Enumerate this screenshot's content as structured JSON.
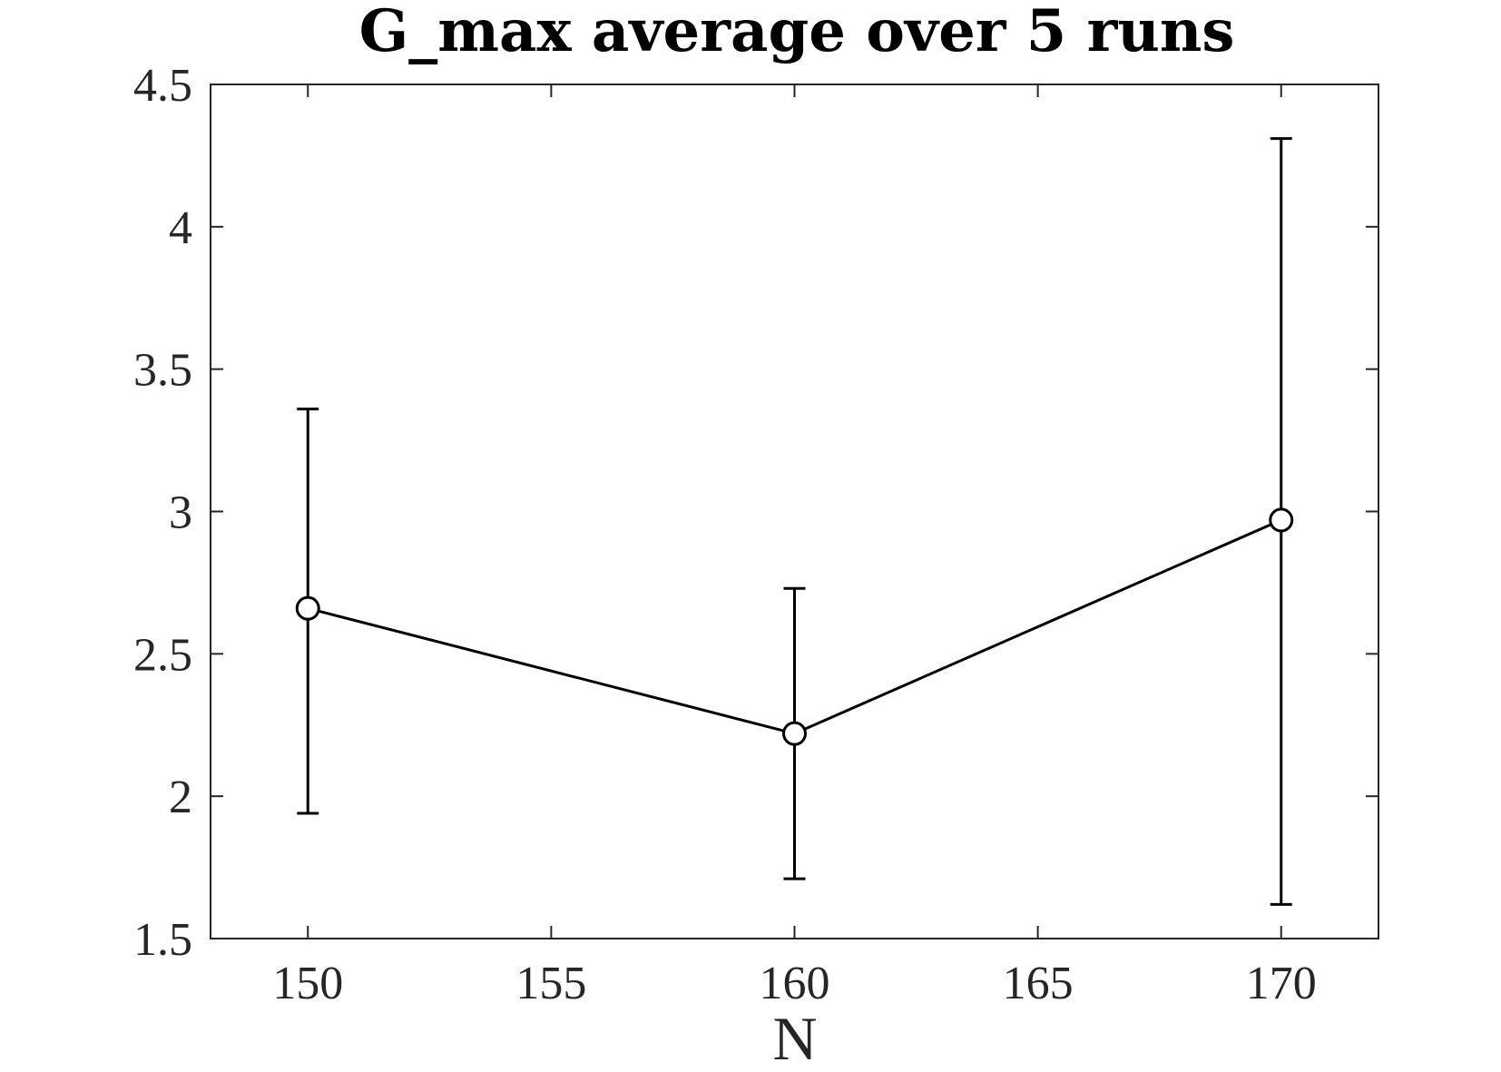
{
  "chart_data": {
    "type": "line",
    "title": "G_max average over 5 runs",
    "xlabel": "N",
    "ylabel": "",
    "xlim": [
      148,
      172
    ],
    "ylim": [
      1.5,
      4.5
    ],
    "xticks": [
      150,
      155,
      160,
      165,
      170
    ],
    "xtick_labels": [
      "150",
      "155",
      "160",
      "165",
      "170"
    ],
    "yticks": [
      1.5,
      2,
      2.5,
      3,
      3.5,
      4,
      4.5
    ],
    "ytick_labels": [
      "1.5",
      "2",
      "2.5",
      "3",
      "3.5",
      "4",
      "4.5"
    ],
    "grid": false,
    "series": [
      {
        "x": [
          150,
          160,
          170
        ],
        "y": [
          2.66,
          2.22,
          2.97
        ],
        "err_low": [
          1.94,
          1.71,
          1.62
        ],
        "err_high": [
          3.36,
          2.73,
          4.31
        ],
        "marker": "circle",
        "color": "#000000"
      }
    ]
  }
}
